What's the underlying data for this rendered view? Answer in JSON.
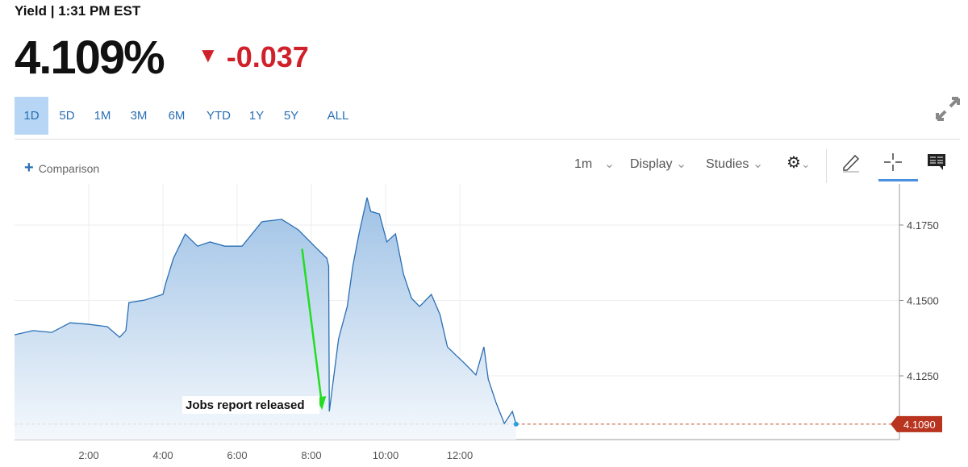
{
  "header": {
    "title": "Yield | 1:31 PM EST",
    "price": "4.109%",
    "change": "-0.037",
    "change_icon": "triangle-down",
    "change_color": "#d0202a"
  },
  "ranges": [
    "1D",
    "5D",
    "1M",
    "3M",
    "6M",
    "YTD",
    "1Y",
    "5Y",
    "ALL"
  ],
  "selected_range": "1D",
  "toolbar": {
    "comparison": "Comparison",
    "interval": "1m",
    "display": "Display",
    "studies": "Studies",
    "icons": [
      "gear-icon",
      "pencil-icon",
      "crosshair-icon",
      "comment-icon",
      "expand-icon"
    ]
  },
  "chart_data": {
    "type": "area",
    "x_ticks": [
      "2:00",
      "4:00",
      "6:00",
      "8:00",
      "10:00",
      "12:00"
    ],
    "y_ticks": [
      "4.1250",
      "4.1500",
      "4.1750"
    ],
    "ylim": [
      4.1039,
      4.188
    ],
    "xlim": [
      "0:00",
      "23:50"
    ],
    "grid": true,
    "last_value_label": "4.1090",
    "line_color": "#2a6fb4",
    "series": [
      {
        "x": [
          "0:00",
          "0:30",
          "1:00",
          "1:30",
          "2:00",
          "2:30",
          "2:50",
          "3:00",
          "3:05",
          "3:30",
          "4:00",
          "4:05",
          "4:17",
          "4:36",
          "4:56",
          "5:16",
          "5:40",
          "6:08",
          "6:40",
          "7:12",
          "7:39",
          "8:05",
          "8:25",
          "8:28",
          "8:29",
          "8:34",
          "8:44",
          "8:58",
          "9:07",
          "9:17",
          "9:30",
          "9:36",
          "9:50",
          "10:02",
          "10:16",
          "10:29",
          "10:42",
          "10:55",
          "11:14",
          "11:28",
          "11:40",
          "11:53",
          "12:07",
          "12:26",
          "12:39",
          "12:46",
          "12:59",
          "13:12",
          "13:25",
          "13:31"
        ],
        "y": [
          4.1386,
          4.14,
          4.1394,
          4.1426,
          4.1421,
          4.1413,
          4.1378,
          4.14,
          4.1493,
          4.1501,
          4.152,
          4.156,
          4.164,
          4.172,
          4.168,
          4.1694,
          4.168,
          4.168,
          4.1761,
          4.1769,
          4.1734,
          4.168,
          4.164,
          4.1614,
          4.1132,
          4.1212,
          4.1373,
          4.148,
          4.1614,
          4.1721,
          4.1841,
          4.1795,
          4.1787,
          4.1694,
          4.1721,
          4.1587,
          4.1507,
          4.148,
          4.152,
          4.1453,
          4.1346,
          4.132,
          4.1293,
          4.1253,
          4.1346,
          4.1239,
          4.1159,
          4.1092,
          4.1132,
          4.109
        ]
      }
    ],
    "annotations": [
      {
        "text": "Jobs report released",
        "arrow_from": [
          "7:45",
          4.1671
        ],
        "arrow_to": [
          "8:16",
          4.114
        ]
      }
    ]
  }
}
